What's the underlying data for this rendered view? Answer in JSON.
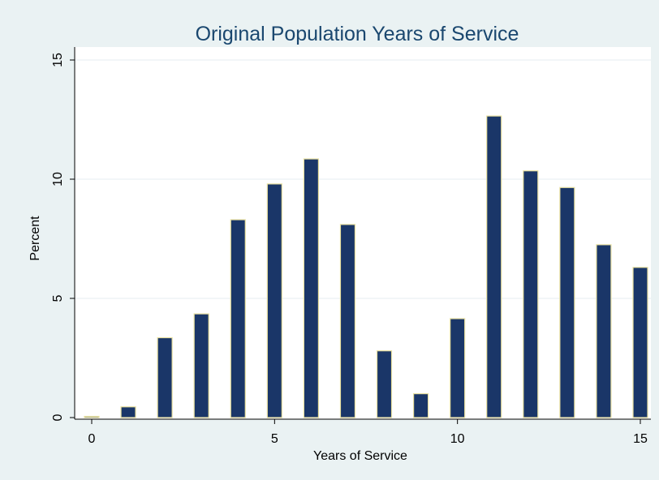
{
  "chart_data": {
    "type": "bar",
    "title": "Original Population Years of Service",
    "xlabel": "Years of Service",
    "ylabel": "Percent",
    "x": [
      0,
      1,
      2,
      3,
      4,
      5,
      6,
      7,
      8,
      9,
      10,
      11,
      12,
      13,
      14,
      15
    ],
    "values": [
      0.05,
      0.45,
      3.35,
      4.35,
      8.3,
      9.8,
      10.85,
      8.1,
      2.8,
      1.0,
      4.15,
      12.65,
      10.35,
      9.65,
      7.25,
      6.3
    ],
    "xlim": [
      0,
      15
    ],
    "ylim": [
      0,
      15
    ],
    "xticks": [
      0,
      5,
      10,
      15
    ],
    "xtick_labels": [
      "0",
      "5",
      "10",
      "15"
    ],
    "yticks": [
      0,
      5,
      10,
      15
    ],
    "ytick_labels": [
      "0",
      "5",
      "10",
      "15"
    ],
    "grid": "horizontal",
    "bar_color": "#1a3668",
    "bar_outline_color": "#e8e0a0",
    "plot_background": "#ffffff",
    "background": "#eaf2f3",
    "title_color": "#1a476f"
  }
}
